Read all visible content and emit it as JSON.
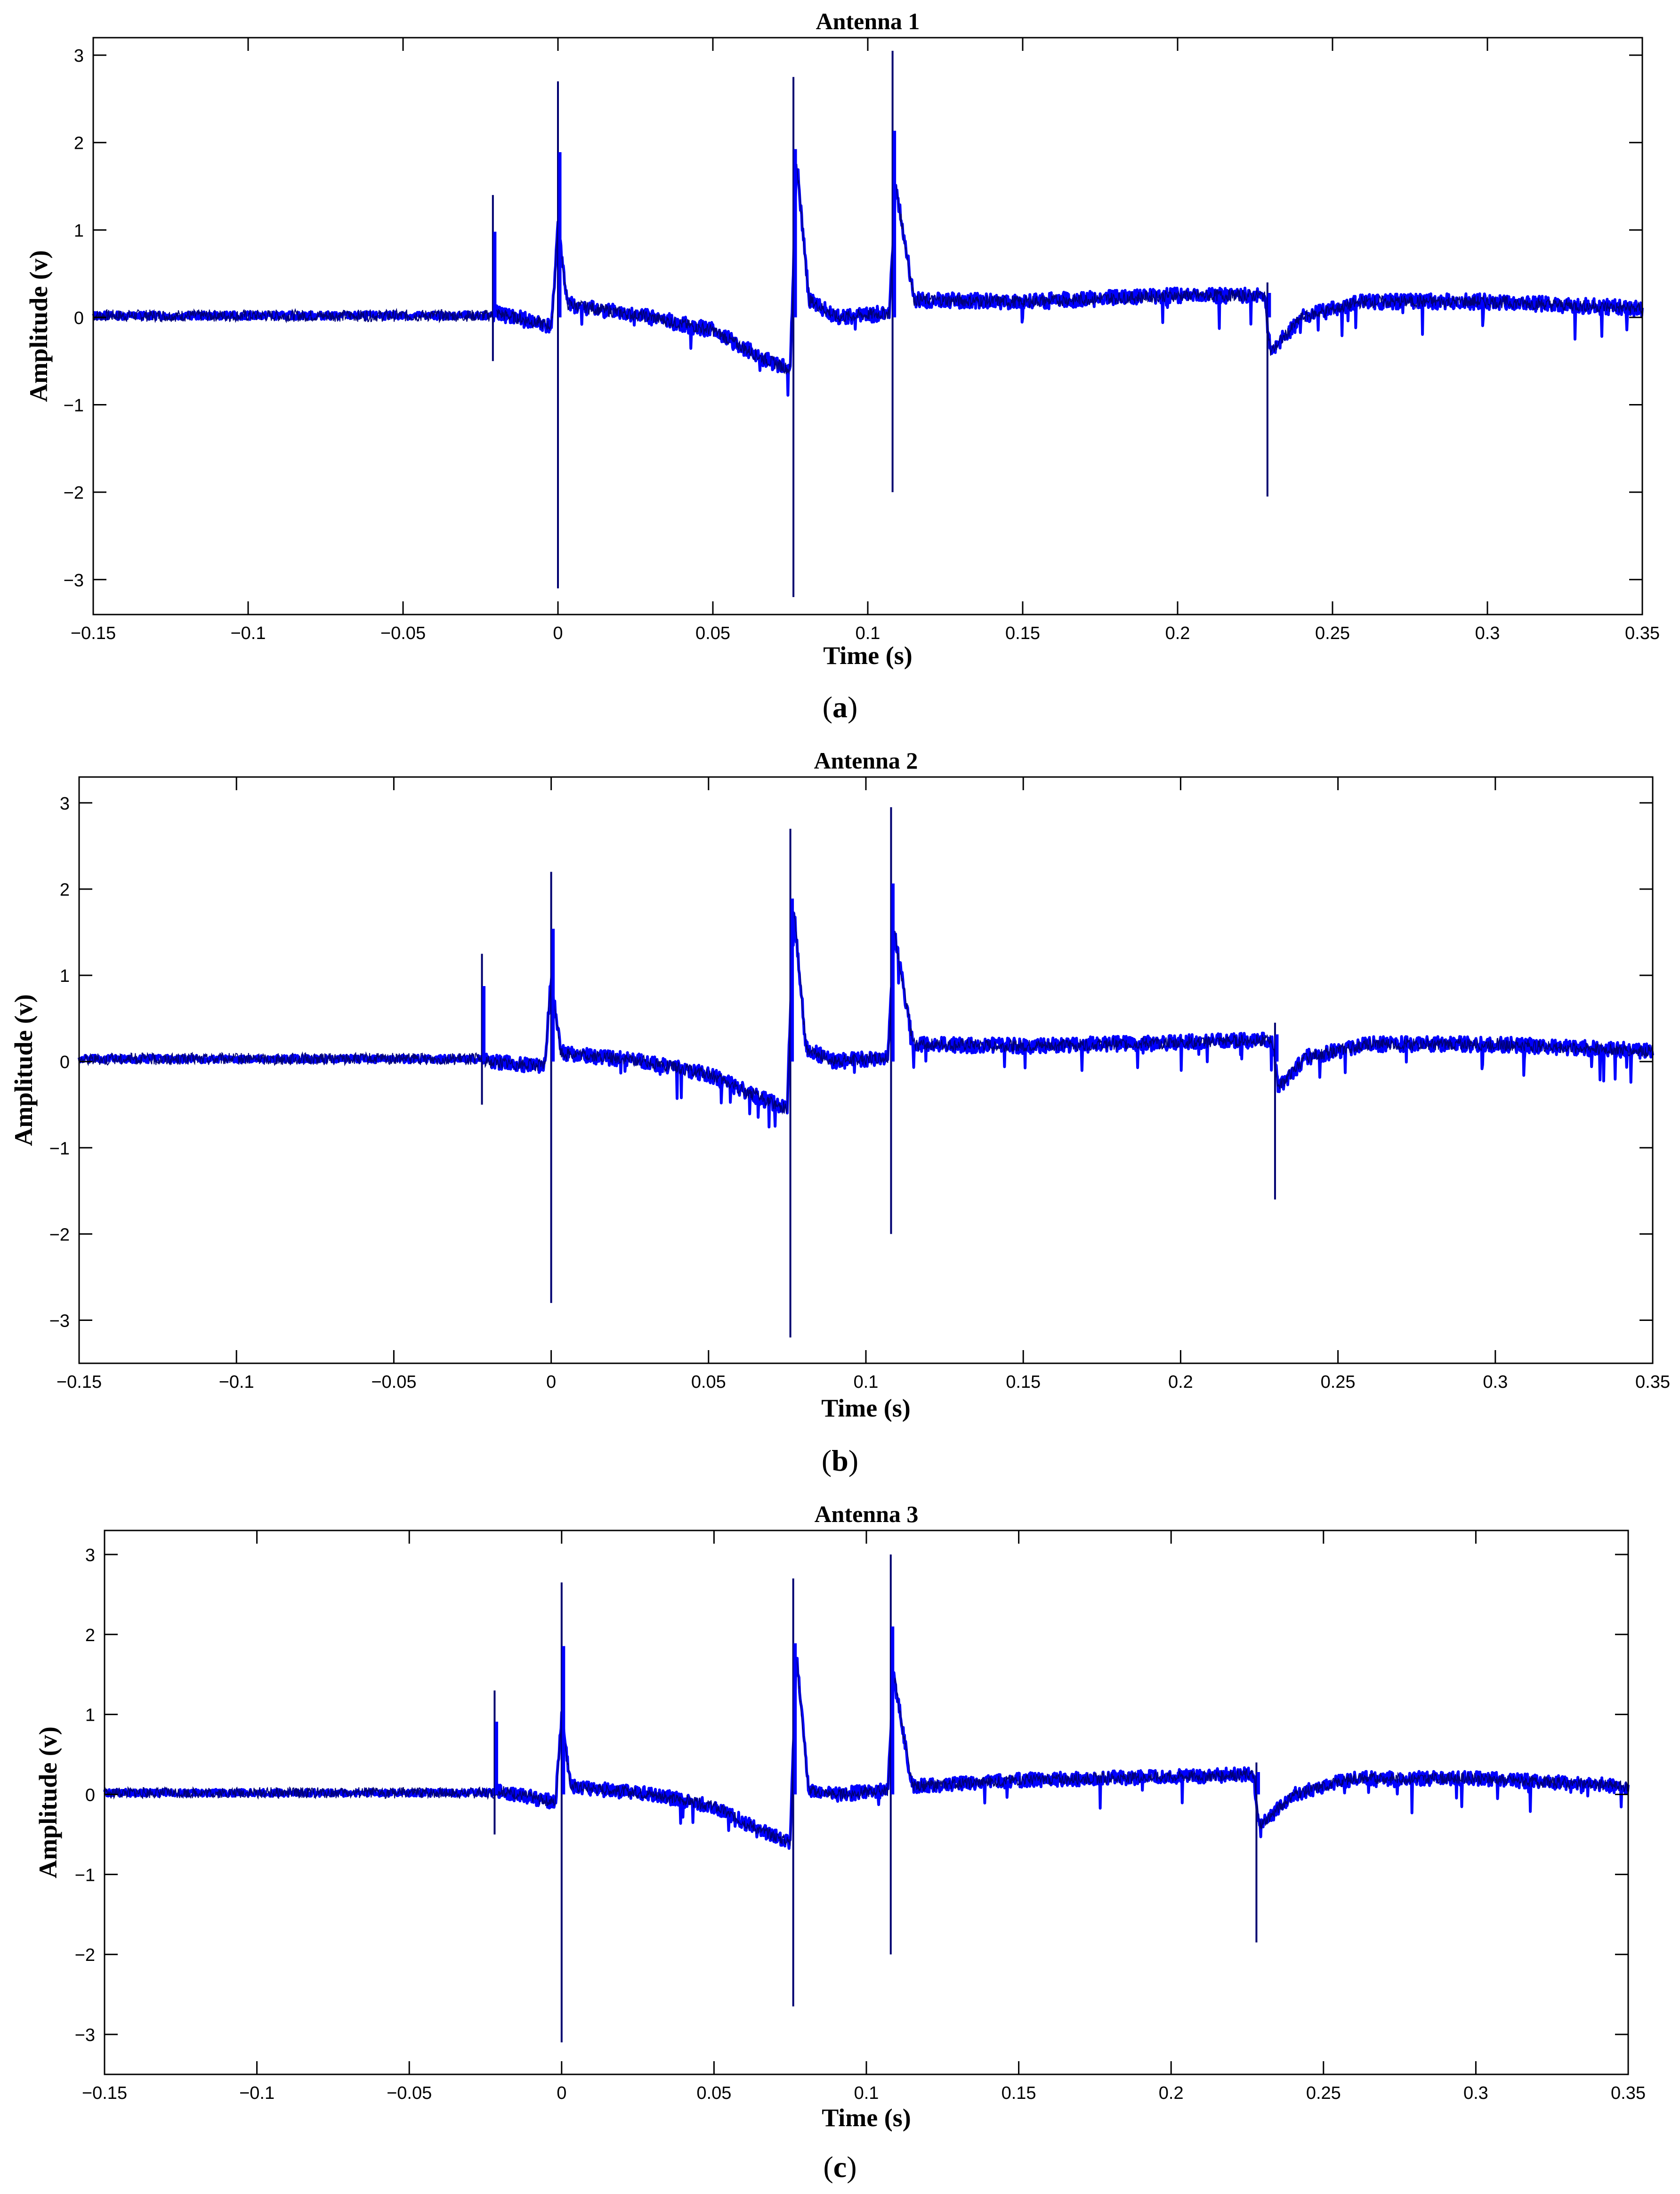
{
  "figure": {
    "captions": [
      {
        "open": "(",
        "letter": "a",
        "close": ")"
      },
      {
        "open": "(",
        "letter": "b",
        "close": ")"
      },
      {
        "open": "(",
        "letter": "c",
        "close": ")"
      }
    ]
  },
  "chart_data": [
    {
      "type": "line",
      "title": "Antenna 1",
      "xlabel": "Time (s)",
      "ylabel": "Amplitude (v)",
      "xlim": [
        -0.15,
        0.35
      ],
      "ylim": [
        -3.4,
        3.2
      ],
      "xticks": [
        "−0.15",
        "−0.1",
        "−0.05",
        "0",
        "0.05",
        "0.1",
        "0.15",
        "0.2",
        "0.25",
        "0.3",
        "0.35"
      ],
      "yticks": [
        "−3",
        "−2",
        "−1",
        "0",
        "1",
        "2",
        "3"
      ],
      "series_color": "#0000ff",
      "spikes": [
        {
          "x": -0.021,
          "ymax": 1.4,
          "ymin": -0.5
        },
        {
          "x": 0.0,
          "ymax": 2.7,
          "ymin": -3.1
        },
        {
          "x": 0.076,
          "ymax": 2.75,
          "ymin": -3.2
        },
        {
          "x": 0.108,
          "ymax": 3.05,
          "ymin": -2.0
        },
        {
          "x": 0.229,
          "ymax": 0.4,
          "ymin": -2.05
        }
      ],
      "envelope": [
        {
          "x": -0.15,
          "y": 0.02
        },
        {
          "x": -0.021,
          "y": 0.02
        },
        {
          "x": -0.02,
          "y": 0.05
        },
        {
          "x": -0.002,
          "y": -0.1
        },
        {
          "x": 0.0,
          "y": 1.1
        },
        {
          "x": 0.003,
          "y": 0.15
        },
        {
          "x": 0.03,
          "y": 0.0
        },
        {
          "x": 0.05,
          "y": -0.15
        },
        {
          "x": 0.065,
          "y": -0.45
        },
        {
          "x": 0.075,
          "y": -0.6
        },
        {
          "x": 0.077,
          "y": 1.8
        },
        {
          "x": 0.081,
          "y": 0.2
        },
        {
          "x": 0.09,
          "y": 0.0
        },
        {
          "x": 0.107,
          "y": 0.05
        },
        {
          "x": 0.109,
          "y": 1.5
        },
        {
          "x": 0.115,
          "y": 0.2
        },
        {
          "x": 0.15,
          "y": 0.18
        },
        {
          "x": 0.2,
          "y": 0.25
        },
        {
          "x": 0.228,
          "y": 0.25
        },
        {
          "x": 0.23,
          "y": -0.4
        },
        {
          "x": 0.24,
          "y": 0.0
        },
        {
          "x": 0.26,
          "y": 0.18
        },
        {
          "x": 0.3,
          "y": 0.18
        },
        {
          "x": 0.35,
          "y": 0.1
        }
      ]
    },
    {
      "type": "line",
      "title": "Antenna 2",
      "xlabel": "Time (s)",
      "ylabel": "Amplitude (v)",
      "xlim": [
        -0.15,
        0.35
      ],
      "ylim": [
        -3.5,
        3.3
      ],
      "xticks": [
        "−0.15",
        "−0.1",
        "−0.05",
        "0",
        "0.05",
        "0.1",
        "0.15",
        "0.2",
        "0.25",
        "0.3",
        "0.35"
      ],
      "yticks": [
        "−3",
        "−2",
        "−1",
        "0",
        "1",
        "2",
        "3"
      ],
      "series_color": "#0000ff",
      "spikes": [
        {
          "x": -0.022,
          "ymax": 1.25,
          "ymin": -0.5
        },
        {
          "x": 0.0,
          "ymax": 2.2,
          "ymin": -2.8
        },
        {
          "x": 0.076,
          "ymax": 2.7,
          "ymin": -3.2
        },
        {
          "x": 0.108,
          "ymax": 2.95,
          "ymin": -2.0
        },
        {
          "x": 0.23,
          "ymax": 0.45,
          "ymin": -1.6
        }
      ],
      "envelope": [
        {
          "x": -0.15,
          "y": 0.03
        },
        {
          "x": -0.022,
          "y": 0.03
        },
        {
          "x": -0.021,
          "y": 0.0
        },
        {
          "x": -0.002,
          "y": -0.05
        },
        {
          "x": 0.0,
          "y": 1.0
        },
        {
          "x": 0.003,
          "y": 0.1
        },
        {
          "x": 0.03,
          "y": 0.0
        },
        {
          "x": 0.05,
          "y": -0.15
        },
        {
          "x": 0.065,
          "y": -0.4
        },
        {
          "x": 0.075,
          "y": -0.55
        },
        {
          "x": 0.077,
          "y": 1.8
        },
        {
          "x": 0.081,
          "y": 0.15
        },
        {
          "x": 0.09,
          "y": 0.0
        },
        {
          "x": 0.107,
          "y": 0.05
        },
        {
          "x": 0.109,
          "y": 1.5
        },
        {
          "x": 0.115,
          "y": 0.2
        },
        {
          "x": 0.15,
          "y": 0.18
        },
        {
          "x": 0.2,
          "y": 0.22
        },
        {
          "x": 0.229,
          "y": 0.25
        },
        {
          "x": 0.231,
          "y": -0.3
        },
        {
          "x": 0.24,
          "y": 0.05
        },
        {
          "x": 0.26,
          "y": 0.2
        },
        {
          "x": 0.3,
          "y": 0.2
        },
        {
          "x": 0.35,
          "y": 0.12
        }
      ]
    },
    {
      "type": "line",
      "title": "Antenna 3",
      "xlabel": "Time (s)",
      "ylabel": "Amplitude (v)",
      "xlim": [
        -0.15,
        0.35
      ],
      "ylim": [
        -3.5,
        3.3
      ],
      "xticks": [
        "−0.15",
        "−0.1",
        "−0.05",
        "0",
        "0.05",
        "0.1",
        "0.15",
        "0.2",
        "0.25",
        "0.3",
        "0.35"
      ],
      "yticks": [
        "−3",
        "−2",
        "−1",
        "0",
        "1",
        "2",
        "3"
      ],
      "series_color": "#0000ff",
      "spikes": [
        {
          "x": -0.022,
          "ymax": 1.3,
          "ymin": -0.5
        },
        {
          "x": 0.0,
          "ymax": 2.65,
          "ymin": -3.1
        },
        {
          "x": 0.076,
          "ymax": 2.7,
          "ymin": -2.65
        },
        {
          "x": 0.108,
          "ymax": 3.0,
          "ymin": -2.0
        },
        {
          "x": 0.228,
          "ymax": 0.4,
          "ymin": -1.85
        }
      ],
      "envelope": [
        {
          "x": -0.15,
          "y": 0.02
        },
        {
          "x": -0.022,
          "y": 0.02
        },
        {
          "x": -0.021,
          "y": 0.05
        },
        {
          "x": -0.002,
          "y": -0.1
        },
        {
          "x": 0.0,
          "y": 1.0
        },
        {
          "x": 0.003,
          "y": 0.1
        },
        {
          "x": 0.03,
          "y": 0.0
        },
        {
          "x": 0.05,
          "y": -0.15
        },
        {
          "x": 0.065,
          "y": -0.45
        },
        {
          "x": 0.075,
          "y": -0.6
        },
        {
          "x": 0.077,
          "y": 1.75
        },
        {
          "x": 0.081,
          "y": 0.05
        },
        {
          "x": 0.09,
          "y": 0.0
        },
        {
          "x": 0.107,
          "y": 0.05
        },
        {
          "x": 0.109,
          "y": 1.5
        },
        {
          "x": 0.115,
          "y": 0.1
        },
        {
          "x": 0.15,
          "y": 0.18
        },
        {
          "x": 0.2,
          "y": 0.22
        },
        {
          "x": 0.227,
          "y": 0.25
        },
        {
          "x": 0.229,
          "y": -0.4
        },
        {
          "x": 0.24,
          "y": 0.0
        },
        {
          "x": 0.26,
          "y": 0.2
        },
        {
          "x": 0.3,
          "y": 0.2
        },
        {
          "x": 0.35,
          "y": 0.1
        }
      ]
    }
  ]
}
